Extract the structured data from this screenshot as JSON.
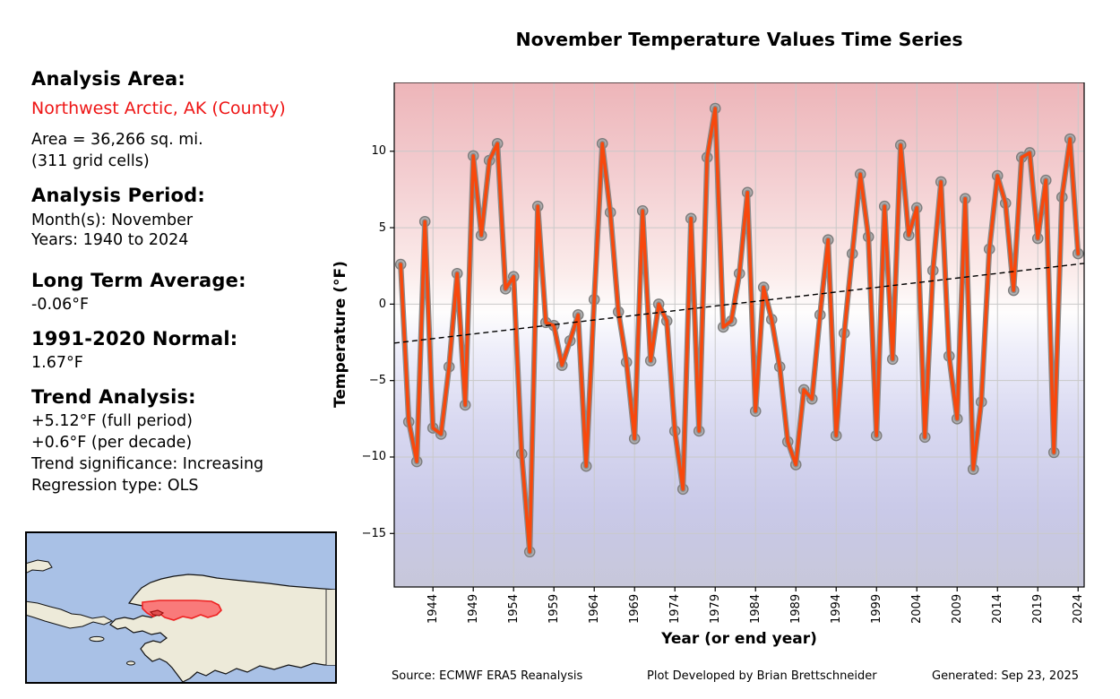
{
  "title": "November Temperature Values Time Series",
  "info_panel": {
    "analysis_area_label": "Analysis Area:",
    "analysis_area_value": "Northwest Arctic, AK (County)",
    "area_line1": "Area = 36,266 sq. mi.",
    "area_line2": "(311 grid cells)",
    "analysis_period_label": "Analysis Period:",
    "period_months": "Month(s): November",
    "period_years": "Years: 1940 to 2024",
    "long_term_average_label": "Long Term Average:",
    "long_term_average_value": "-0.06°F",
    "normal_label": "1991-2020 Normal:",
    "normal_value": "1.67°F",
    "trend_label": "Trend Analysis:",
    "trend_full_period": "+5.12°F (full period)",
    "trend_per_decade": "+0.6°F (per decade)",
    "trend_significance": "Trend significance: Increasing",
    "regression_type": "Regression type: OLS"
  },
  "footer": {
    "source": "Source: ECMWF ERA5 Reanalysis",
    "credit": "Plot Developed by Brian Brettschneider",
    "generated": "Generated: Sep 23, 2025"
  },
  "map": {
    "highlight_name": "Northwest Arctic Borough",
    "ocean_color": "#a9c1e6",
    "land_color": "#edead9",
    "highlight_fill": "#f97a7a",
    "highlight_stroke": "#ee2222"
  },
  "chart_data": {
    "type": "line",
    "title": "November Temperature Values Time Series",
    "xlabel": "Year (or end year)",
    "ylabel": "Temperature (°F)",
    "x": [
      1940,
      1941,
      1942,
      1943,
      1944,
      1945,
      1946,
      1947,
      1948,
      1949,
      1950,
      1951,
      1952,
      1953,
      1954,
      1955,
      1956,
      1957,
      1958,
      1959,
      1960,
      1961,
      1962,
      1963,
      1964,
      1965,
      1966,
      1967,
      1968,
      1969,
      1970,
      1971,
      1972,
      1973,
      1974,
      1975,
      1976,
      1977,
      1978,
      1979,
      1980,
      1981,
      1982,
      1983,
      1984,
      1985,
      1986,
      1987,
      1988,
      1989,
      1990,
      1991,
      1992,
      1993,
      1994,
      1995,
      1996,
      1997,
      1998,
      1999,
      2000,
      2001,
      2002,
      2003,
      2004,
      2005,
      2006,
      2007,
      2008,
      2009,
      2010,
      2011,
      2012,
      2013,
      2014,
      2015,
      2016,
      2017,
      2018,
      2019,
      2020,
      2021,
      2022,
      2023,
      2024
    ],
    "values": [
      2.6,
      -7.7,
      -10.3,
      5.4,
      -8.1,
      -8.5,
      -4.1,
      2.0,
      -6.6,
      9.7,
      4.5,
      9.4,
      10.5,
      1.0,
      1.8,
      -9.8,
      -16.2,
      6.4,
      -1.2,
      -1.4,
      -4.0,
      -2.4,
      -0.7,
      -10.6,
      0.3,
      10.5,
      6.0,
      -0.5,
      -3.8,
      -8.8,
      6.1,
      -3.7,
      0.0,
      -1.1,
      -8.3,
      -12.1,
      5.6,
      -8.3,
      9.6,
      12.8,
      -1.5,
      -1.1,
      2.0,
      7.3,
      -7.0,
      1.1,
      -1.0,
      -4.1,
      -9.0,
      -10.5,
      -5.6,
      -6.2,
      -0.7,
      4.2,
      -8.6,
      -1.9,
      3.3,
      8.5,
      4.4,
      -8.6,
      6.4,
      -3.6,
      10.4,
      4.5,
      6.3,
      -8.7,
      2.2,
      8.0,
      -3.4,
      -7.5,
      6.9,
      -10.8,
      -6.4,
      3.6,
      8.4,
      6.6,
      0.9,
      9.6,
      9.9,
      4.3,
      8.1,
      -9.7,
      7.0,
      10.8,
      3.3
    ],
    "xticks": [
      1944,
      1949,
      1954,
      1959,
      1964,
      1969,
      1974,
      1979,
      1984,
      1989,
      1994,
      1999,
      2004,
      2009,
      2014,
      2019,
      2024
    ],
    "yticks": [
      10,
      5,
      0,
      -5,
      -10,
      -15
    ],
    "xlim": [
      1939.2,
      2024.75
    ],
    "ylim": [
      -18.5,
      14.5
    ],
    "grid": true,
    "legend": "none",
    "line_color": "#f8480c",
    "line_halo_color": "#8a8a8a",
    "marker_color": "#a8a8a8",
    "marker_edge_color": "#7d7d7d",
    "trend": {
      "label": "OLS trend",
      "start_year": 1940,
      "end_year": 2024,
      "start_value": -2.5,
      "end_value": 2.62,
      "style": "dashed",
      "color": "#000000"
    },
    "background": "red (warm, top) to white (0°F) to blue (cold, bottom) gradient"
  }
}
